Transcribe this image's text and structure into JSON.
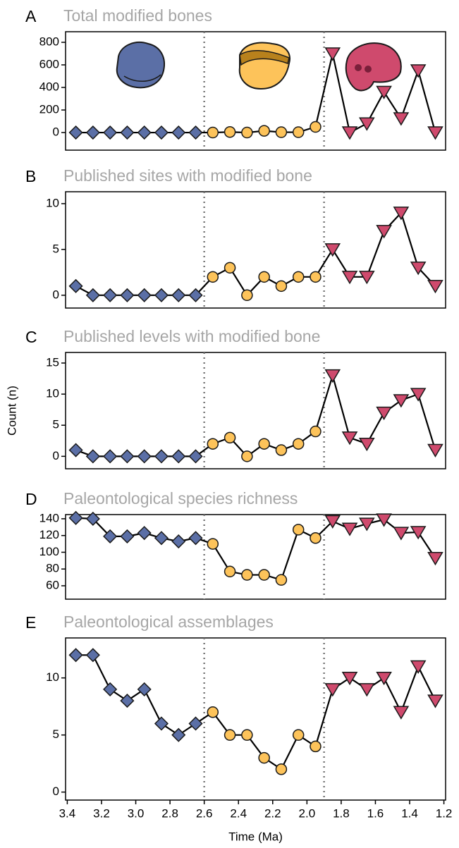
{
  "chart_data": [
    {
      "type": "line",
      "label": "A",
      "title": "Total modified bones",
      "xlim": [
        3.41,
        1.19
      ],
      "ylim": [
        -156,
        894
      ],
      "yticks": [
        0,
        200,
        400,
        600,
        800
      ],
      "vlines": [
        2.6,
        1.9
      ],
      "series": [
        {
          "marker": "diamond",
          "color": "#5b6fa6",
          "x": [
            3.35,
            3.25,
            3.15,
            3.05,
            2.95,
            2.85,
            2.75,
            2.65
          ],
          "values": [
            0,
            0,
            0,
            0,
            0,
            0,
            0,
            0
          ]
        },
        {
          "marker": "circle",
          "color": "#fdc35a",
          "x": [
            2.55,
            2.45,
            2.35,
            2.25,
            2.15,
            2.05,
            1.95
          ],
          "values": [
            0,
            5,
            0,
            15,
            3,
            3,
            50
          ]
        },
        {
          "marker": "triangle",
          "color": "#cf4a6d",
          "x": [
            1.85,
            1.75,
            1.65,
            1.55,
            1.45,
            1.35,
            1.25
          ],
          "values": [
            700,
            0,
            80,
            360,
            125,
            550,
            0
          ]
        }
      ]
    },
    {
      "type": "line",
      "label": "B",
      "title": "Published sites with modified bone",
      "xlim": [
        3.41,
        1.19
      ],
      "ylim": [
        -1.4,
        11.3
      ],
      "yticks": [
        0,
        5,
        10
      ],
      "vlines": [
        2.6,
        1.9
      ],
      "series": [
        {
          "marker": "diamond",
          "color": "#5b6fa6",
          "x": [
            3.35,
            3.25,
            3.15,
            3.05,
            2.95,
            2.85,
            2.75,
            2.65
          ],
          "values": [
            1,
            0,
            0,
            0,
            0,
            0,
            0,
            0
          ]
        },
        {
          "marker": "circle",
          "color": "#fdc35a",
          "x": [
            2.55,
            2.45,
            2.35,
            2.25,
            2.15,
            2.05,
            1.95
          ],
          "values": [
            2,
            3,
            0,
            2,
            1,
            2,
            2
          ]
        },
        {
          "marker": "triangle",
          "color": "#cf4a6d",
          "x": [
            1.85,
            1.75,
            1.65,
            1.55,
            1.45,
            1.35,
            1.25
          ],
          "values": [
            5,
            2,
            2,
            7,
            9,
            3,
            1
          ]
        }
      ]
    },
    {
      "type": "line",
      "label": "C",
      "title": "Published levels with modified bone",
      "ylabel": "Count (n)",
      "xlim": [
        3.41,
        1.19
      ],
      "ylim": [
        -2,
        16.7
      ],
      "yticks": [
        0,
        5,
        10,
        15
      ],
      "vlines": [
        2.6,
        1.9
      ],
      "series": [
        {
          "marker": "diamond",
          "color": "#5b6fa6",
          "x": [
            3.35,
            3.25,
            3.15,
            3.05,
            2.95,
            2.85,
            2.75,
            2.65
          ],
          "values": [
            1,
            0,
            0,
            0,
            0,
            0,
            0,
            0
          ]
        },
        {
          "marker": "circle",
          "color": "#fdc35a",
          "x": [
            2.55,
            2.45,
            2.35,
            2.25,
            2.15,
            2.05,
            1.95
          ],
          "values": [
            2,
            3,
            0,
            2,
            1,
            2,
            4
          ]
        },
        {
          "marker": "triangle",
          "color": "#cf4a6d",
          "x": [
            1.85,
            1.75,
            1.65,
            1.55,
            1.45,
            1.35,
            1.25
          ],
          "values": [
            13,
            3,
            2,
            7,
            9,
            10,
            1
          ]
        }
      ]
    },
    {
      "type": "line",
      "label": "D",
      "title": "Paleontological species richness",
      "xlim": [
        3.41,
        1.19
      ],
      "ylim": [
        44,
        145
      ],
      "yticks": [
        60,
        80,
        100,
        120,
        140
      ],
      "vlines": [
        2.6,
        1.9
      ],
      "series": [
        {
          "marker": "diamond",
          "color": "#5b6fa6",
          "x": [
            3.35,
            3.25,
            3.15,
            3.05,
            2.95,
            2.85,
            2.75,
            2.65
          ],
          "values": [
            141,
            140,
            119,
            119,
            123,
            117,
            113,
            117
          ]
        },
        {
          "marker": "circle",
          "color": "#fdc35a",
          "x": [
            2.55,
            2.45,
            2.35,
            2.25,
            2.15,
            2.05,
            1.95
          ],
          "values": [
            110,
            77,
            73,
            73,
            67,
            127,
            117
          ]
        },
        {
          "marker": "triangle",
          "color": "#cf4a6d",
          "x": [
            1.85,
            1.75,
            1.65,
            1.55,
            1.45,
            1.35,
            1.25
          ],
          "values": [
            137,
            128,
            134,
            139,
            123,
            124,
            93
          ]
        }
      ]
    },
    {
      "type": "line",
      "label": "E",
      "title": "Paleontological assemblages",
      "xlabel": "Time (Ma)",
      "xlim": [
        3.41,
        1.19
      ],
      "ylim": [
        -0.7,
        13.5
      ],
      "yticks": [
        0,
        5,
        10
      ],
      "vlines": [
        2.6,
        1.9
      ],
      "xticks": [
        3.4,
        3.2,
        {
          "value": 3,
          "label": "3.0"
        },
        2.8,
        2.6,
        2.4,
        2.2,
        {
          "value": 2,
          "label": "2.0"
        },
        1.8,
        1.6,
        1.4,
        1.2
      ],
      "series": [
        {
          "marker": "diamond",
          "color": "#5b6fa6",
          "x": [
            3.35,
            3.25,
            3.15,
            3.05,
            2.95,
            2.85,
            2.75,
            2.65
          ],
          "values": [
            12,
            12,
            9,
            8,
            9,
            6,
            5,
            6
          ]
        },
        {
          "marker": "circle",
          "color": "#fdc35a",
          "x": [
            2.55,
            2.45,
            2.35,
            2.25,
            2.15,
            2.05,
            1.95
          ],
          "values": [
            7,
            5,
            5,
            3,
            2,
            5,
            4
          ]
        },
        {
          "marker": "triangle",
          "color": "#cf4a6d",
          "x": [
            1.85,
            1.75,
            1.65,
            1.55,
            1.45,
            1.35,
            1.25
          ],
          "values": [
            9,
            10,
            9,
            10,
            7,
            11,
            8
          ]
        }
      ]
    }
  ]
}
